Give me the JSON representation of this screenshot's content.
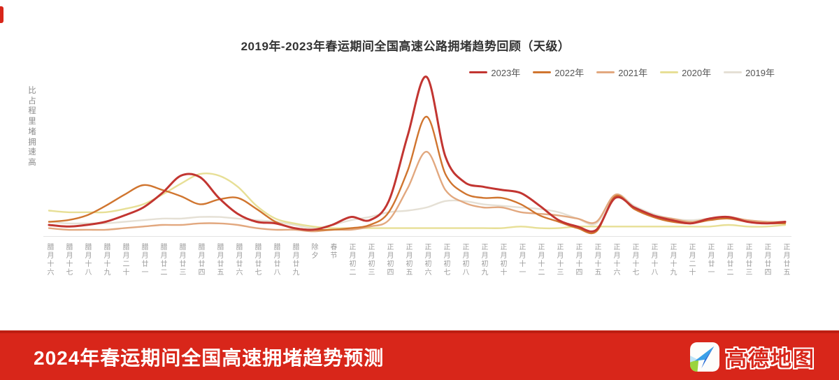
{
  "chart": {
    "title": "2019年-2023年春运期间全国高速公路拥堵趋势回顾（天级）",
    "y_axis_label": "高速拥堵里程占比",
    "legend": [
      {
        "label": "2023年",
        "color": "#c23531"
      },
      {
        "label": "2022年",
        "color": "#d0752f"
      },
      {
        "label": "2021年",
        "color": "#e2a87f"
      },
      {
        "label": "2020年",
        "color": "#e7df96"
      },
      {
        "label": "2019年",
        "color": "#e5e0d5"
      }
    ]
  },
  "chart_data": {
    "type": "line",
    "title": "2019年-2023年春运期间全国高速公路拥堵趋势回顾（天级）",
    "xlabel": "",
    "ylabel": "高速拥堵里程占比",
    "ylim": [
      0,
      105
    ],
    "grid": false,
    "legend_position": "top-right",
    "categories": [
      "腊月十六",
      "腊月十七",
      "腊月十八",
      "腊月十九",
      "腊月二十",
      "腊月廿一",
      "腊月廿二",
      "腊月廿三",
      "腊月廿四",
      "腊月廿五",
      "腊月廿六",
      "腊月廿七",
      "腊月廿八",
      "腊月廿九",
      "除夕",
      "春节",
      "正月初二",
      "正月初三",
      "正月初四",
      "正月初五",
      "正月初六",
      "正月初七",
      "正月初八",
      "正月初九",
      "正月初十",
      "正月十一",
      "正月十二",
      "正月十三",
      "正月十四",
      "正月十五",
      "正月十六",
      "正月十七",
      "正月十八",
      "正月十九",
      "正月二十",
      "正月廿一",
      "正月廿二",
      "正月廿三",
      "正月廿四",
      "正月廿五"
    ],
    "series": [
      {
        "name": "2023年",
        "color": "#c23531",
        "values": [
          7,
          6,
          7,
          9,
          13,
          18,
          27,
          38,
          37,
          24,
          14,
          9,
          8,
          5,
          4,
          7,
          12,
          10,
          22,
          63,
          100,
          50,
          34,
          31,
          29,
          27,
          19,
          10,
          6,
          4,
          24,
          18,
          13,
          10,
          8,
          11,
          12,
          9,
          8,
          9
        ]
      },
      {
        "name": "2022年",
        "color": "#d0752f",
        "values": [
          9,
          10,
          13,
          19,
          26,
          32,
          29,
          25,
          20,
          23,
          24,
          17,
          9,
          5,
          4,
          4,
          5,
          7,
          15,
          41,
          75,
          39,
          27,
          24,
          24,
          20,
          13,
          9,
          5,
          3,
          25,
          17,
          12,
          9,
          8,
          10,
          11,
          9,
          8,
          8
        ]
      },
      {
        "name": "2021年",
        "color": "#e2a87f",
        "values": [
          5,
          4,
          4,
          4,
          5,
          6,
          7,
          7,
          8,
          8,
          7,
          5,
          4,
          4,
          3,
          4,
          4,
          6,
          10,
          30,
          53,
          29,
          21,
          18,
          18,
          15,
          14,
          13,
          11,
          9,
          26,
          18,
          13,
          11,
          9,
          11,
          12,
          10,
          9,
          9
        ]
      },
      {
        "name": "2020年",
        "color": "#e7df96",
        "values": [
          16,
          15,
          15,
          15,
          17,
          20,
          26,
          33,
          39,
          38,
          31,
          19,
          11,
          8,
          6,
          5,
          5,
          5,
          5,
          5,
          5,
          5,
          5,
          5,
          5,
          6,
          5,
          5,
          6,
          6,
          6,
          6,
          6,
          6,
          6,
          6,
          7,
          6,
          6,
          7
        ]
      },
      {
        "name": "2019年",
        "color": "#e5e0d5",
        "values": [
          9,
          8,
          8,
          8,
          9,
          10,
          11,
          11,
          12,
          12,
          11,
          10,
          9,
          7,
          5,
          7,
          10,
          12,
          15,
          16,
          18,
          22,
          22,
          20,
          19,
          18,
          17,
          15,
          11,
          8,
          26,
          19,
          14,
          11,
          10,
          11,
          11,
          10,
          9,
          9
        ]
      }
    ]
  },
  "banner": {
    "title": "2024年春运期间全国高速拥堵趋势预测",
    "background": "#d8261a",
    "logo_icon": "amap-paper-plane-icon",
    "logo_text": "高德地图"
  }
}
